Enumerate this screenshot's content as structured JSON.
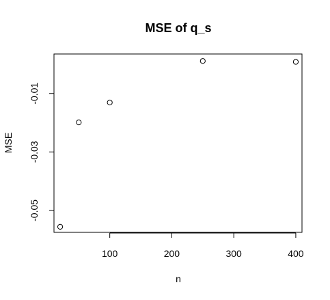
{
  "chart_data": {
    "type": "scatter",
    "title": "MSE of q_s",
    "xlabel": "n",
    "ylabel": "MSE",
    "x": [
      20,
      50,
      100,
      250,
      400
    ],
    "y": [
      -0.0556,
      -0.0199,
      -0.0131,
      0.0011,
      0.0008
    ],
    "xlim": [
      10,
      410
    ],
    "ylim": [
      -0.0575,
      0.0035
    ],
    "x_ticks": [
      100,
      200,
      300,
      400
    ],
    "x_tick_labels": [
      "100",
      "200",
      "300",
      "400"
    ],
    "y_ticks": [
      -0.05,
      -0.03,
      -0.01
    ],
    "y_tick_labels": [
      "-0.05",
      "-0.03",
      "-0.01"
    ],
    "marker": "open-circle",
    "grid": false
  }
}
